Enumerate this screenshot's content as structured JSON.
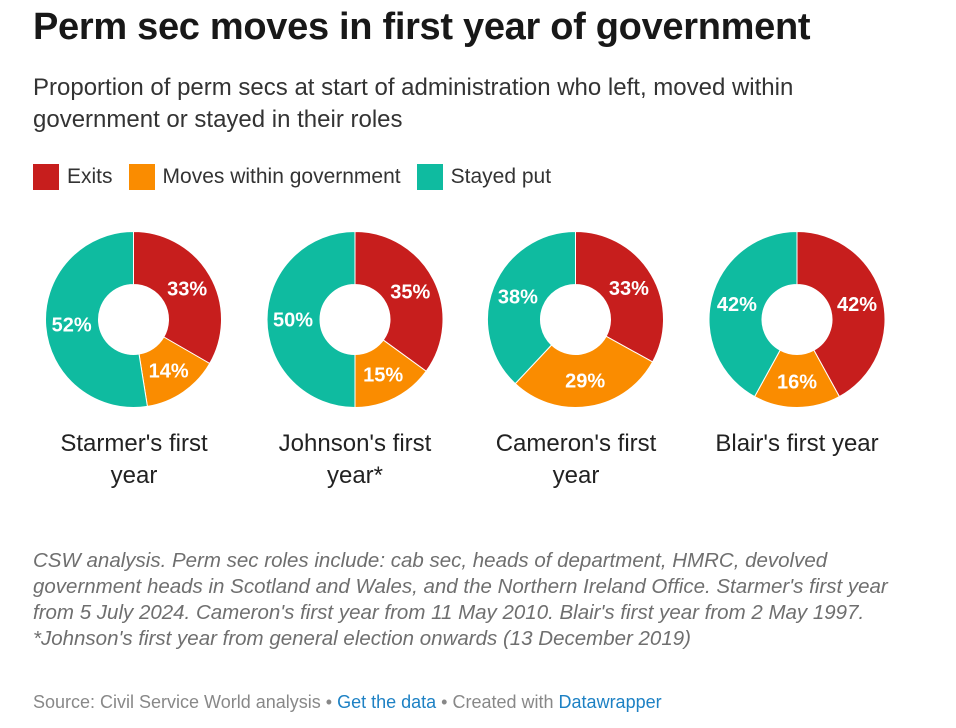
{
  "title": "Perm sec moves in first year of government",
  "subtitle": "Proportion of perm secs at start of administration who left, moved within government or stayed in their roles",
  "chart_data": {
    "type": "pie",
    "legend": [
      {
        "name": "Exits",
        "color": "#c71e1d"
      },
      {
        "name": "Moves within government",
        "color": "#fa8c00"
      },
      {
        "name": "Stayed put",
        "color": "#0fbba0"
      }
    ],
    "charts": [
      {
        "title": "Starmer's first year",
        "values": [
          33,
          14,
          52
        ]
      },
      {
        "title": "Johnson's first year*",
        "values": [
          35,
          15,
          50
        ]
      },
      {
        "title": "Cameron's first year",
        "values": [
          33,
          29,
          38
        ]
      },
      {
        "title": "Blair's first year",
        "values": [
          42,
          16,
          42
        ]
      }
    ],
    "unit": "%"
  },
  "notes": "CSW analysis. Perm sec roles include: cab sec, heads of department, HMRC, devolved government heads in Scotland and Wales, and the Northern Ireland Office. Starmer's first year from 5 July 2024. Cameron's first year from 11 May 2010. Blair's first year from 2 May 1997. *Johnson's first year from general election onwards (13 December 2019)",
  "footer": {
    "source": "Source: Civil Service World analysis",
    "sep": " • ",
    "get_data": "Get the data",
    "created": "Created with",
    "datawrapper": "Datawrapper"
  }
}
